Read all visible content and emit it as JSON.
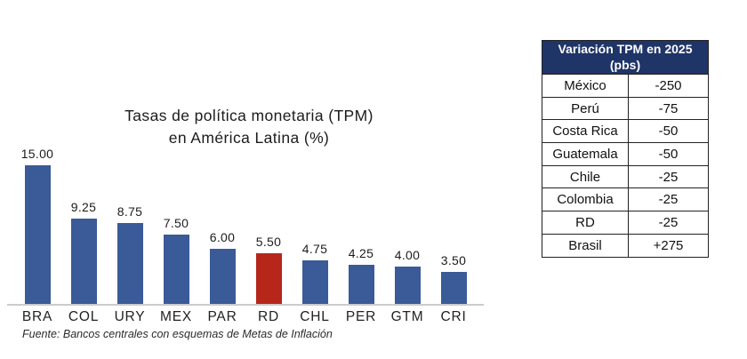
{
  "chart": {
    "title_line1": "Tasas de política monetaria (TPM)",
    "title_line2": "en América Latina (%)",
    "source": "Fuente: Bancos centrales con esquemas de Metas de Inflación"
  },
  "chart_data": {
    "type": "bar",
    "title": "Tasas de política monetaria (TPM) en América Latina (%)",
    "categories": [
      "BRA",
      "COL",
      "URY",
      "MEX",
      "PAR",
      "RD",
      "CHL",
      "PER",
      "GTM",
      "CRI"
    ],
    "values": [
      15.0,
      9.25,
      8.75,
      7.5,
      6.0,
      5.5,
      4.75,
      4.25,
      4.0,
      3.5
    ],
    "value_labels": [
      "15.00",
      "9.25",
      "8.75",
      "7.50",
      "6.00",
      "5.50",
      "4.75",
      "4.25",
      "4.00",
      "3.50"
    ],
    "highlighted_category": "RD",
    "bar_color": "#3A5A98",
    "highlight_color": "#B7261B",
    "ylim": [
      0,
      15
    ],
    "grid": false,
    "legend": "none",
    "source": "Fuente: Bancos centrales con esquemas de Metas de Inflación"
  },
  "table": {
    "header": "Variación TPM en 2025 (pbs)",
    "header_bg": "#1F3467",
    "rows": [
      {
        "country": "México",
        "value": "-250"
      },
      {
        "country": "Perú",
        "value": "-75"
      },
      {
        "country": "Costa Rica",
        "value": "-50"
      },
      {
        "country": "Guatemala",
        "value": "-50"
      },
      {
        "country": "Chile",
        "value": "-25"
      },
      {
        "country": "Colombia",
        "value": "-25"
      },
      {
        "country": "RD",
        "value": "-25"
      },
      {
        "country": "Brasil",
        "value": "+275"
      }
    ]
  }
}
